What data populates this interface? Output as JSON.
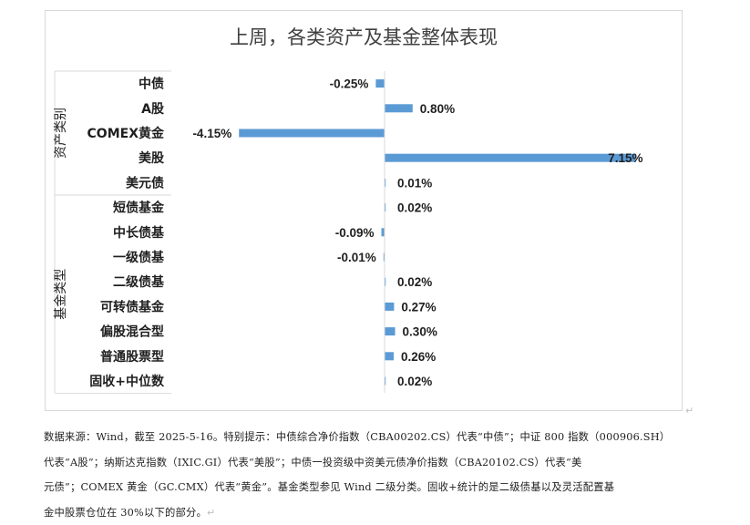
{
  "chart_data": {
    "type": "bar",
    "orientation": "horizontal",
    "title": "上周，各类资产及基金整体表现",
    "groups": [
      {
        "name": "资产类别",
        "categories": [
          "中债",
          "A股",
          "COMEX黄金",
          "美股",
          "美元债"
        ]
      },
      {
        "name": "基金类型",
        "categories": [
          "短债基金",
          "中长债基",
          "一级债基",
          "二级债基",
          "可转债基金",
          "偏股混合型",
          "普通股票型",
          "固收+中位数"
        ]
      }
    ],
    "categories": [
      "中债",
      "A股",
      "COMEX黄金",
      "美股",
      "美元债",
      "短债基金",
      "中长债基",
      "一级债基",
      "二级债基",
      "可转债基金",
      "偏股混合型",
      "普通股票型",
      "固收+中位数"
    ],
    "values": [
      -0.25,
      0.8,
      -4.15,
      7.15,
      0.01,
      0.02,
      -0.09,
      -0.01,
      0.02,
      0.27,
      0.3,
      0.26,
      0.02
    ],
    "labels": [
      "-0.25%",
      "0.80%",
      "-4.15%",
      "7.15%",
      "0.01%",
      "0.02%",
      "-0.09%",
      "-0.01%",
      "0.02%",
      "0.27%",
      "0.30%",
      "0.26%",
      "0.02%"
    ],
    "unit": "%",
    "xlim": [
      -4.5,
      7.15
    ],
    "bar_color": "#5b9bd5",
    "grid": false,
    "legend": "none"
  },
  "footnote": {
    "lines": [
      "数据来源：Wind，截至 2025-5-16。特别提示：中债综合净价指数（CBA00202.CS）代表“中债”；中证 800 指数（000906.SH）",
      "代表“A股”；纳斯达克指数（IXIC.GI）代表“美股”；中债一投资级中资美元债净价指数（CBA20102.CS）代表“美",
      "元债”；COMEX 黄金（GC.CMX）代表“黄金”。基金类型参见 Wind 二级分类。固收+统计的是二级债基以及灵活配置基",
      "金中股票仓位在 30%以下的部分。"
    ],
    "return_mark": "↵"
  }
}
